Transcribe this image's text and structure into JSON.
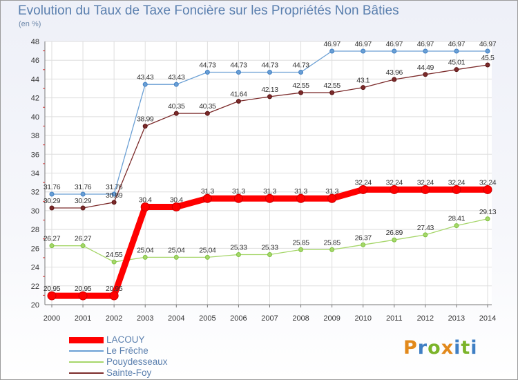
{
  "title": "Evolution du Taux de Taxe Foncière sur les Propriétés Non Bâties",
  "unit": "(en %)",
  "logo": {
    "text": "Proxiti",
    "colors": [
      "#e2891b",
      "#3f7fc4",
      "#7cb42a",
      "#e2891b",
      "#3f7fc4",
      "#7cb42a",
      "#3f7fc4"
    ]
  },
  "chart_data": {
    "type": "line",
    "title": "Evolution du Taux de Taxe Foncière sur les Propriétés Non Bâties",
    "ylabel": "(en %)",
    "xlabel": "",
    "ylim": [
      20,
      48
    ],
    "yticks": [
      20,
      22,
      24,
      26,
      28,
      30,
      32,
      34,
      36,
      38,
      40,
      42,
      44,
      46,
      48
    ],
    "grid": true,
    "legend_position": "bottom-left",
    "x": [
      "2000",
      "2001",
      "2002",
      "2003",
      "2004",
      "2005",
      "2006",
      "2007",
      "2008",
      "2009",
      "2010",
      "2011",
      "2012",
      "2013",
      "2014"
    ],
    "series": [
      {
        "name": "LACOUY",
        "color": "#ff0000",
        "marker_color": "#cc0000",
        "emphasis": "thick",
        "values": [
          20.95,
          20.95,
          20.95,
          30.4,
          30.4,
          31.3,
          31.3,
          31.3,
          31.3,
          31.3,
          32.24,
          32.24,
          32.24,
          32.24,
          32.24
        ],
        "labels": [
          "20.95",
          "20.95",
          "20.95",
          "30.4",
          "30.4",
          "31.3",
          "31.3",
          "31.3",
          "31.3",
          "31.3",
          "32.24",
          "32.24",
          "32.24",
          "32.24",
          "32.24"
        ]
      },
      {
        "name": "Le Frêche",
        "color": "#6a9fd4",
        "marker_color": "#3f7fc4",
        "values": [
          31.76,
          31.76,
          31.76,
          43.43,
          43.43,
          44.73,
          44.73,
          44.73,
          44.73,
          46.97,
          46.97,
          46.97,
          46.97,
          46.97,
          46.97
        ],
        "labels": [
          "31.76",
          "31.76",
          "31.76",
          "43.43",
          "43.43",
          "44.73",
          "44.73",
          "44.73",
          "44.73",
          "46.97",
          "46.97",
          "46.97",
          "46.97",
          "46.97",
          "46.97"
        ]
      },
      {
        "name": "Pouydesseaux",
        "color": "#a6d66a",
        "marker_color": "#7cc23e",
        "values": [
          26.27,
          26.27,
          24.55,
          25.04,
          25.04,
          25.04,
          25.33,
          25.33,
          25.85,
          25.85,
          26.37,
          26.89,
          27.43,
          28.41,
          29.13
        ],
        "labels": [
          "26.27",
          "26.27",
          "24.55",
          "25.04",
          "25.04",
          "25.04",
          "25.33",
          "25.33",
          "25.85",
          "25.85",
          "26.37",
          "26.89",
          "27.43",
          "28.41",
          "29.13"
        ]
      },
      {
        "name": "Sainte-Foy",
        "color": "#7b2a2a",
        "marker_color": "#5a1414",
        "values": [
          30.29,
          30.29,
          30.89,
          38.99,
          40.35,
          40.35,
          41.64,
          42.13,
          42.55,
          42.55,
          43.1,
          43.96,
          44.49,
          45.01,
          45.5
        ],
        "labels": [
          "30.29",
          "30.29",
          "30.89",
          "38.99",
          "40.35",
          "40.35",
          "41.64",
          "42.13",
          "42.55",
          "42.55",
          "43.1",
          "43.96",
          "44.49",
          "45.01",
          "45.5"
        ]
      }
    ]
  }
}
